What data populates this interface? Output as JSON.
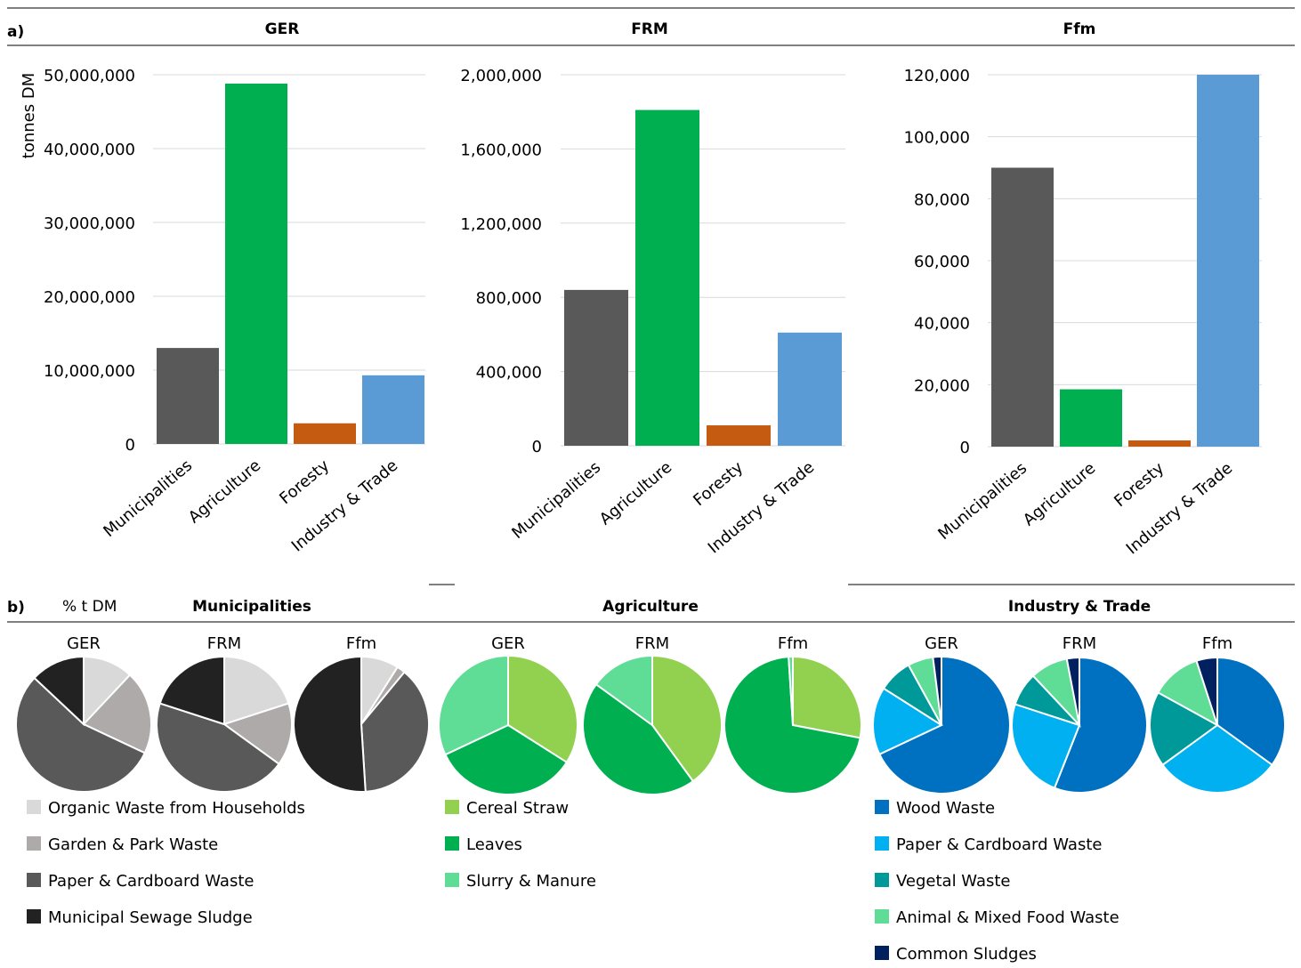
{
  "panel_a_label": "a)",
  "panel_b_label": "b)",
  "pie_unit_label": "% t DM",
  "colors": {
    "municipalities": "#595959",
    "agriculture": "#00b050",
    "foresty": "#c55a11",
    "industry": "#5b9bd5",
    "grid": "#d9d9d9"
  },
  "chart_data": [
    {
      "type": "bar",
      "title": "GER",
      "ylabel": "tonnes DM",
      "categories": [
        "Municipalities",
        "Agriculture",
        "Foresty",
        "Industry & Trade"
      ],
      "values": [
        13000000,
        48800000,
        2800000,
        9300000
      ],
      "ylim": [
        0,
        50000000
      ],
      "yticks": [
        0,
        10000000,
        20000000,
        30000000,
        40000000,
        50000000
      ],
      "ytick_labels": [
        "0",
        "10,000,000",
        "20,000,000",
        "30,000,000",
        "40,000,000",
        "50,000,000"
      ],
      "grid": true
    },
    {
      "type": "bar",
      "title": "FRM",
      "categories": [
        "Municipalities",
        "Agriculture",
        "Foresty",
        "Industry & Trade"
      ],
      "values": [
        840000,
        1810000,
        110000,
        610000
      ],
      "ylim": [
        0,
        2000000
      ],
      "yticks": [
        0,
        400000,
        800000,
        1200000,
        1600000,
        2000000
      ],
      "ytick_labels": [
        "0",
        "400,000",
        "800,000",
        "1,200,000",
        "1,600,000",
        "2,000,000"
      ],
      "grid": true
    },
    {
      "type": "bar",
      "title": "Ffm",
      "categories": [
        "Municipalities",
        "Agriculture",
        "Foresty",
        "Industry & Trade"
      ],
      "values": [
        90000,
        18500,
        2000,
        120000
      ],
      "ylim": [
        0,
        120000
      ],
      "yticks": [
        0,
        20000,
        40000,
        60000,
        80000,
        100000,
        120000
      ],
      "ytick_labels": [
        "0",
        "20,000",
        "40,000",
        "60,000",
        "80,000",
        "100,000",
        "120,000"
      ],
      "grid": true
    },
    {
      "type": "pie",
      "group": "Municipalities",
      "title": "GER",
      "labels": [
        "Organic Waste from Households",
        "Garden & Park Waste",
        "Paper & Cardboard Waste",
        "Municipal Sewage Sludge"
      ],
      "values": [
        12,
        20,
        55,
        13
      ]
    },
    {
      "type": "pie",
      "group": "Municipalities",
      "title": "FRM",
      "labels": [
        "Organic Waste from Households",
        "Garden & Park Waste",
        "Paper & Cardboard Waste",
        "Municipal Sewage Sludge"
      ],
      "values": [
        20,
        15,
        45,
        20
      ]
    },
    {
      "type": "pie",
      "group": "Municipalities",
      "title": "Ffm",
      "labels": [
        "Organic Waste from Households",
        "Garden & Park Waste",
        "Paper & Cardboard Waste",
        "Municipal Sewage Sludge"
      ],
      "values": [
        9,
        2,
        38,
        51
      ]
    },
    {
      "type": "pie",
      "group": "Agriculture",
      "title": "GER",
      "labels": [
        "Cereal Straw",
        "Leaves",
        "Slurry & Manure"
      ],
      "values": [
        34,
        34,
        32
      ]
    },
    {
      "type": "pie",
      "group": "Agriculture",
      "title": "FRM",
      "labels": [
        "Cereal Straw",
        "Leaves",
        "Slurry & Manure"
      ],
      "values": [
        40,
        45,
        15
      ]
    },
    {
      "type": "pie",
      "group": "Agriculture",
      "title": "Ffm",
      "labels": [
        "Cereal Straw",
        "Leaves",
        "Slurry & Manure"
      ],
      "values": [
        28,
        71,
        1
      ]
    },
    {
      "type": "pie",
      "group": "Industry & Trade",
      "title": "GER",
      "labels": [
        "Wood Waste",
        "Paper & Cardboard Waste",
        "Vegetal Waste",
        "Animal & Mixed Food Waste",
        "Common Sludges"
      ],
      "values": [
        68,
        16,
        8,
        6,
        2
      ]
    },
    {
      "type": "pie",
      "group": "Industry & Trade",
      "title": "FRM",
      "labels": [
        "Wood Waste",
        "Paper & Cardboard Waste",
        "Vegetal Waste",
        "Animal & Mixed Food Waste",
        "Common Sludges"
      ],
      "values": [
        56,
        24,
        8,
        9,
        3
      ]
    },
    {
      "type": "pie",
      "group": "Industry & Trade",
      "title": "Ffm",
      "labels": [
        "Wood Waste",
        "Paper & Cardboard Waste",
        "Vegetal Waste",
        "Animal & Mixed Food Waste",
        "Common Sludges"
      ],
      "values": [
        35,
        30,
        18,
        12,
        5
      ]
    }
  ],
  "pie_groups": [
    {
      "title": "Municipalities",
      "legend": [
        {
          "label": "Organic Waste from Households",
          "color": "#d9d9d9"
        },
        {
          "label": "Garden & Park Waste",
          "color": "#aeaaaa"
        },
        {
          "label": "Paper & Cardboard Waste",
          "color": "#595959"
        },
        {
          "label": "Municipal Sewage Sludge",
          "color": "#222222"
        }
      ]
    },
    {
      "title": "Agriculture",
      "legend": [
        {
          "label": "Cereal Straw",
          "color": "#92d050"
        },
        {
          "label": "Leaves",
          "color": "#00b050"
        },
        {
          "label": "Slurry & Manure",
          "color": "#5fdc96"
        }
      ]
    },
    {
      "title": "Industry & Trade",
      "legend": [
        {
          "label": "Wood Waste",
          "color": "#0070c0"
        },
        {
          "label": "Paper & Cardboard Waste",
          "color": "#00b0f0"
        },
        {
          "label": "Vegetal Waste",
          "color": "#009999"
        },
        {
          "label": "Animal & Mixed Food Waste",
          "color": "#5fdc96"
        },
        {
          "label": "Common Sludges",
          "color": "#002060"
        }
      ]
    }
  ]
}
